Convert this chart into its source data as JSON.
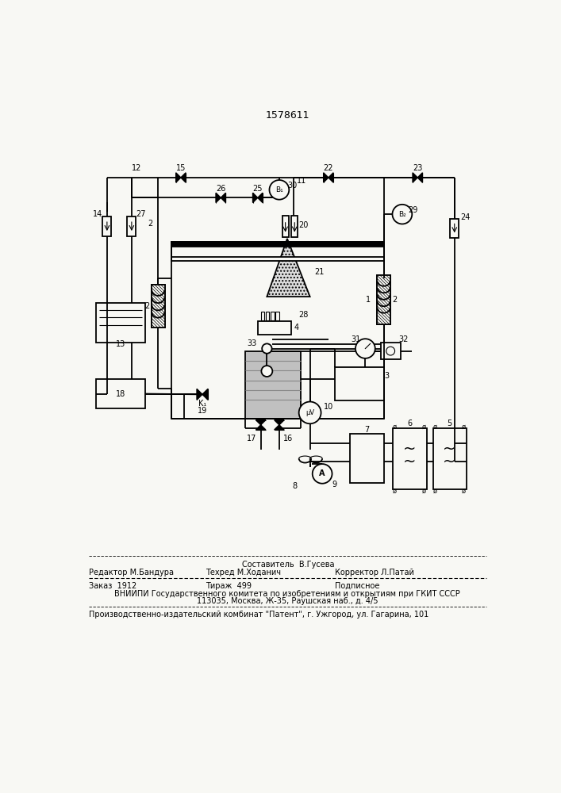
{
  "patent_number": "1578611",
  "bg": "#f8f8f4",
  "footer": {
    "sestavitel": "Составитель  В.Гусева",
    "redaktor": "Редактор М.Бандура",
    "tehred": "Техред М.Ходанич",
    "korrektor": "Корректор Л.Патай",
    "zakaz": "Заказ  1912",
    "tirazh": "Тираж  499",
    "podpisnoe": "Подписное",
    "vniipи": "ВНИИПИ Государственного комитета по изобретениям и открытиям при ГКИТ СССР",
    "address": "113035, Москва, Ж-35, Раушская наб., д. 4/5",
    "kombinat": "Производственно-издательский комбинат \"Патент\", г. Ужгород, ул. Гагарина, 101"
  }
}
